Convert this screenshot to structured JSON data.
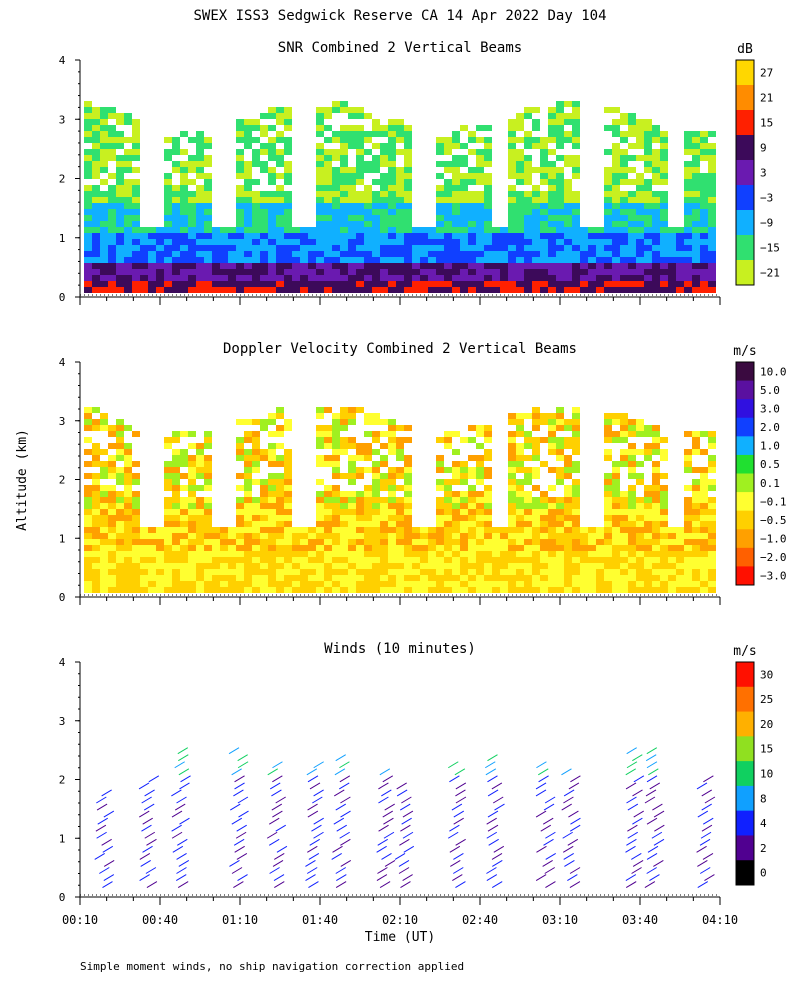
{
  "title": "SWEX ISS3 Sedgwick Reserve CA  14 Apr 2022 Day 104",
  "ylabel": "Altitude (km)",
  "xlabel": "Time (UT)",
  "footnote": "Simple moment winds, no ship navigation correction applied",
  "chart_data": [
    {
      "type": "heatmap",
      "title": "SNR Combined 2 Vertical Beams",
      "x_ticks": [
        "00:10",
        "00:40",
        "01:10",
        "01:40",
        "02:10",
        "02:40",
        "03:10",
        "03:40",
        "04:10"
      ],
      "y_ticks": [
        "0",
        "1",
        "2",
        "3",
        "4"
      ],
      "ylim": [
        0,
        4
      ],
      "colorbar": {
        "unit": "dB",
        "labels": [
          "27",
          "21",
          "15",
          "9",
          "3",
          "−3",
          "−9",
          "−15",
          "−21"
        ],
        "colors": [
          "#ffd700",
          "#ff8c00",
          "#ff2000",
          "#3c0a5a",
          "#6a1ab0",
          "#1040ff",
          "#10b0ff",
          "#30e070",
          "#c8f020"
        ]
      },
      "gap_times": [
        "00:36",
        "01:03",
        "01:32",
        "02:18",
        "02:46",
        "03:21",
        "03:52"
      ]
    },
    {
      "type": "heatmap",
      "title": "Doppler Velocity Combined 2 Vertical Beams",
      "x_ticks": [
        "00:10",
        "00:40",
        "01:10",
        "01:40",
        "02:10",
        "02:40",
        "03:10",
        "03:40",
        "04:10"
      ],
      "y_ticks": [
        "0",
        "1",
        "2",
        "3",
        "4"
      ],
      "ylim": [
        0,
        4
      ],
      "colorbar": {
        "unit": "m/s",
        "labels": [
          "10.0",
          "5.0",
          "3.0",
          "2.0",
          "1.0",
          "0.5",
          "0.1",
          "−0.1",
          "−0.5",
          "−1.0",
          "−2.0",
          "−3.0"
        ],
        "colors": [
          "#3a0a40",
          "#5a10a0",
          "#3010e0",
          "#1040ff",
          "#10b0ff",
          "#20e030",
          "#a0f020",
          "#ffff30",
          "#ffd000",
          "#ffa000",
          "#ff6000",
          "#ff1000"
        ]
      }
    },
    {
      "type": "scatter",
      "title": "Winds (10 minutes)",
      "x_ticks": [
        "00:10",
        "00:40",
        "01:10",
        "01:40",
        "02:10",
        "02:40",
        "03:10",
        "03:40",
        "04:10"
      ],
      "y_ticks": [
        "0",
        "1",
        "2",
        "3",
        "4"
      ],
      "ylim": [
        0,
        4
      ],
      "colorbar": {
        "unit": "m/s",
        "labels": [
          "30",
          "25",
          "20",
          "15",
          "10",
          "8",
          "4",
          "2",
          "0"
        ],
        "colors": [
          "#ff1000",
          "#ff7000",
          "#ffb000",
          "#90e020",
          "#10d060",
          "#10a0ff",
          "#1020ff",
          "#500090",
          "#000000"
        ]
      }
    }
  ]
}
